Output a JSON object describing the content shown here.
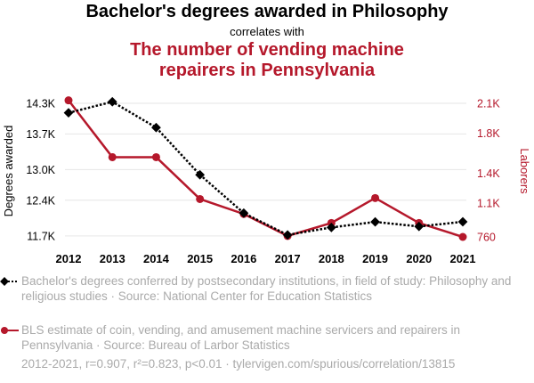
{
  "header": {
    "title": "Bachelor's degrees awarded in Philosophy",
    "connector": "correlates with",
    "title2_line1": "The number of vending machine",
    "title2_line2": "repairers in Pennsylvania"
  },
  "colors": {
    "series1": "#000000",
    "series2": "#b5182b",
    "legend_text": "#aaaaaa",
    "grid": "#e6e6e6"
  },
  "chart_data": {
    "type": "line",
    "x": [
      2012,
      2013,
      2014,
      2015,
      2016,
      2017,
      2018,
      2019,
      2020,
      2021
    ],
    "x_tick_labels": [
      "2012",
      "2013",
      "2014",
      "2015",
      "2016",
      "2017",
      "2018",
      "2019",
      "2020",
      "2021"
    ],
    "left_axis": {
      "label": "Degrees awarded",
      "ylim": [
        11680,
        14300
      ],
      "ticks": [
        11700,
        12400,
        13000,
        13700,
        14300
      ],
      "tick_labels": [
        "11.7K",
        "12.4K",
        "13.0K",
        "13.7K",
        "14.3K"
      ]
    },
    "right_axis": {
      "label": "Laborers",
      "ylim": [
        760,
        2100
      ],
      "ticks": [
        760,
        1100,
        1400,
        1800,
        2100
      ],
      "tick_labels": [
        "760",
        "1.1K",
        "1.4K",
        "1.8K",
        "2.1K"
      ]
    },
    "series": [
      {
        "name": "Bachelor's degrees conferred by postsecondary institutions, in field of study: Philosophy and religious studies · Source: National Center for Education Statistics",
        "axis": "left",
        "style": "dotted",
        "marker": "diamond",
        "values": [
          14114,
          14330,
          13825,
          12898,
          12147,
          11720,
          11866,
          11974,
          11885,
          11977
        ]
      },
      {
        "name": "BLS estimate of coin, vending, and amusement machine servicers and repairers in Pennsylvania · Source: Bureau of Larbor Statistics",
        "axis": "right",
        "style": "solid",
        "marker": "circle",
        "values": [
          2130,
          1560,
          1560,
          1140,
          990,
          770,
          900,
          1150,
          900,
          760
        ]
      }
    ],
    "grid": true
  },
  "legend": {
    "item1_text": "Bachelor's degrees conferred by postsecondary institutions, in field of study: Philosophy and religious studies · Source: National Center for Education Statistics",
    "item2_text": "BLS estimate of coin, vending, and amusement machine servicers and repairers in Pennsylvania · Source: Bureau of Larbor Statistics"
  },
  "footer": {
    "stats": "2012-2021, r=0.907, r²=0.823, p<0.01 · tylervigen.com/spurious/correlation/13815"
  }
}
